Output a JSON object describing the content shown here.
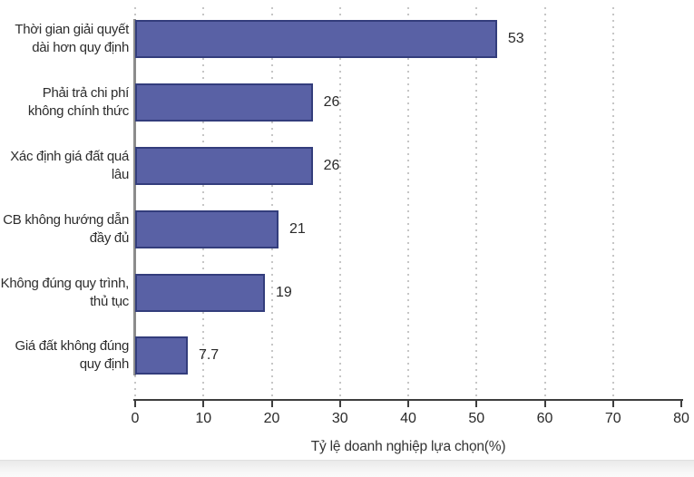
{
  "figure": {
    "background": "#ffffff"
  },
  "chart_data": {
    "type": "bar",
    "orientation": "horizontal",
    "title": "",
    "xlabel": "Tỷ lệ doanh nghiệp lựa chọn(%)",
    "xlim": [
      0,
      80
    ],
    "xticks": [
      0,
      10,
      20,
      30,
      40,
      50,
      60,
      70,
      80
    ],
    "xtick_labels": [
      "0",
      "10",
      "20",
      "30",
      "40",
      "50",
      "60",
      "70",
      "80"
    ],
    "grid": "vertical dotted gridlines at ticks 0-70, none at 80",
    "legend_position": "none",
    "categories": [
      "Thời gian giải quyết dài hơn quy định",
      "Phải trả chi phí không chính thức",
      "Xác định giá đất quá lâu",
      "CB không hướng dẫn đầy đủ",
      "Không đúng quy trình, thủ tục",
      "Giá đất không đúng quy định"
    ],
    "category_line_breaks": [
      [
        "Thời gian giải quyết",
        "dài hơn quy định"
      ],
      [
        "Phải trả chi phí",
        "không chính thức"
      ],
      [
        "Xác định giá đất quá",
        "lâu"
      ],
      [
        "CB không hướng dẫn",
        "đầy đủ"
      ],
      [
        "Không đúng quy trình,",
        "thủ tục"
      ],
      [
        "Giá đất không đúng",
        "quy định"
      ]
    ],
    "values": [
      53,
      26,
      26,
      21,
      19,
      7.7
    ],
    "value_labels": [
      "53",
      "26",
      "26",
      "21",
      "19",
      "7.7"
    ],
    "colors": {
      "bar_fill": "#5961a5",
      "bar_border": "#333d7c",
      "axis_line": "#3e3e3e",
      "baseline": "#8c8c8c",
      "grid_line": "#c6c6c6",
      "text": "#2d2d2d"
    }
  }
}
